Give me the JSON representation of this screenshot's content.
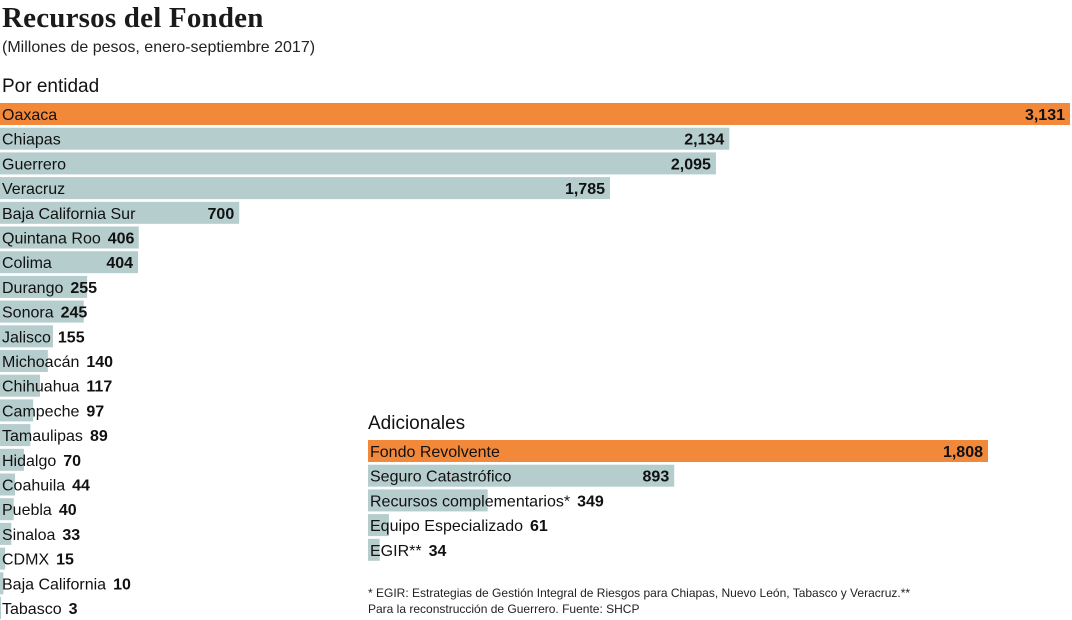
{
  "header": {
    "title": "Recursos del Fonden",
    "subtitle": "(Millones de pesos, enero-septiembre 2017)"
  },
  "colors": {
    "highlight": "#f2883a",
    "bar": "#b5cdcd",
    "text": "#1a1a1a"
  },
  "chart_data": [
    {
      "type": "bar",
      "orientation": "horizontal",
      "title": "Por entidad",
      "categories": [
        "Oaxaca",
        "Chiapas",
        "Guerrero",
        "Veracruz",
        "Baja California Sur",
        "Quintana Roo",
        "Colima",
        "Durango",
        "Sonora",
        "Jalisco",
        "Michoacán",
        "Chihuahua",
        "Campeche",
        "Tamaulipas",
        "Hidalgo",
        "Coahuila",
        "Puebla",
        "Sinaloa",
        "CDMX",
        "Baja California",
        "Tabasco"
      ],
      "values": [
        3131,
        2134,
        2095,
        1785,
        700,
        406,
        404,
        255,
        245,
        155,
        140,
        117,
        97,
        89,
        70,
        44,
        40,
        33,
        15,
        10,
        3
      ],
      "value_labels": [
        "3,131",
        "2,134",
        "2,095",
        "1,785",
        "700",
        "406",
        "404",
        "255",
        "245",
        "155",
        "140",
        "117",
        "97",
        "89",
        "70",
        "44",
        "40",
        "33",
        "15",
        "10",
        "3"
      ],
      "highlight": [
        "Oaxaca"
      ],
      "xlim": [
        0,
        3131
      ],
      "grid": false
    },
    {
      "type": "bar",
      "orientation": "horizontal",
      "title": "Adicionales",
      "categories": [
        "Fondo Revolvente",
        "Seguro Catastrófico",
        "Recursos complementarios*",
        "Equipo Especializado",
        "EGIR**"
      ],
      "values": [
        1808,
        893,
        349,
        61,
        34
      ],
      "value_labels": [
        "1,808",
        "893",
        "349",
        "61",
        "34"
      ],
      "highlight": [
        "Fondo Revolvente"
      ],
      "xlim": [
        0,
        1808
      ],
      "grid": false
    }
  ],
  "footnote": {
    "line1": "* EGIR: Estrategias de Gestión Integral de Riesgos para Chiapas, Nuevo León, Tabasco y Veracruz.**",
    "line2": "Para la reconstrucción de Guerrero. Fuente: SHCP"
  }
}
